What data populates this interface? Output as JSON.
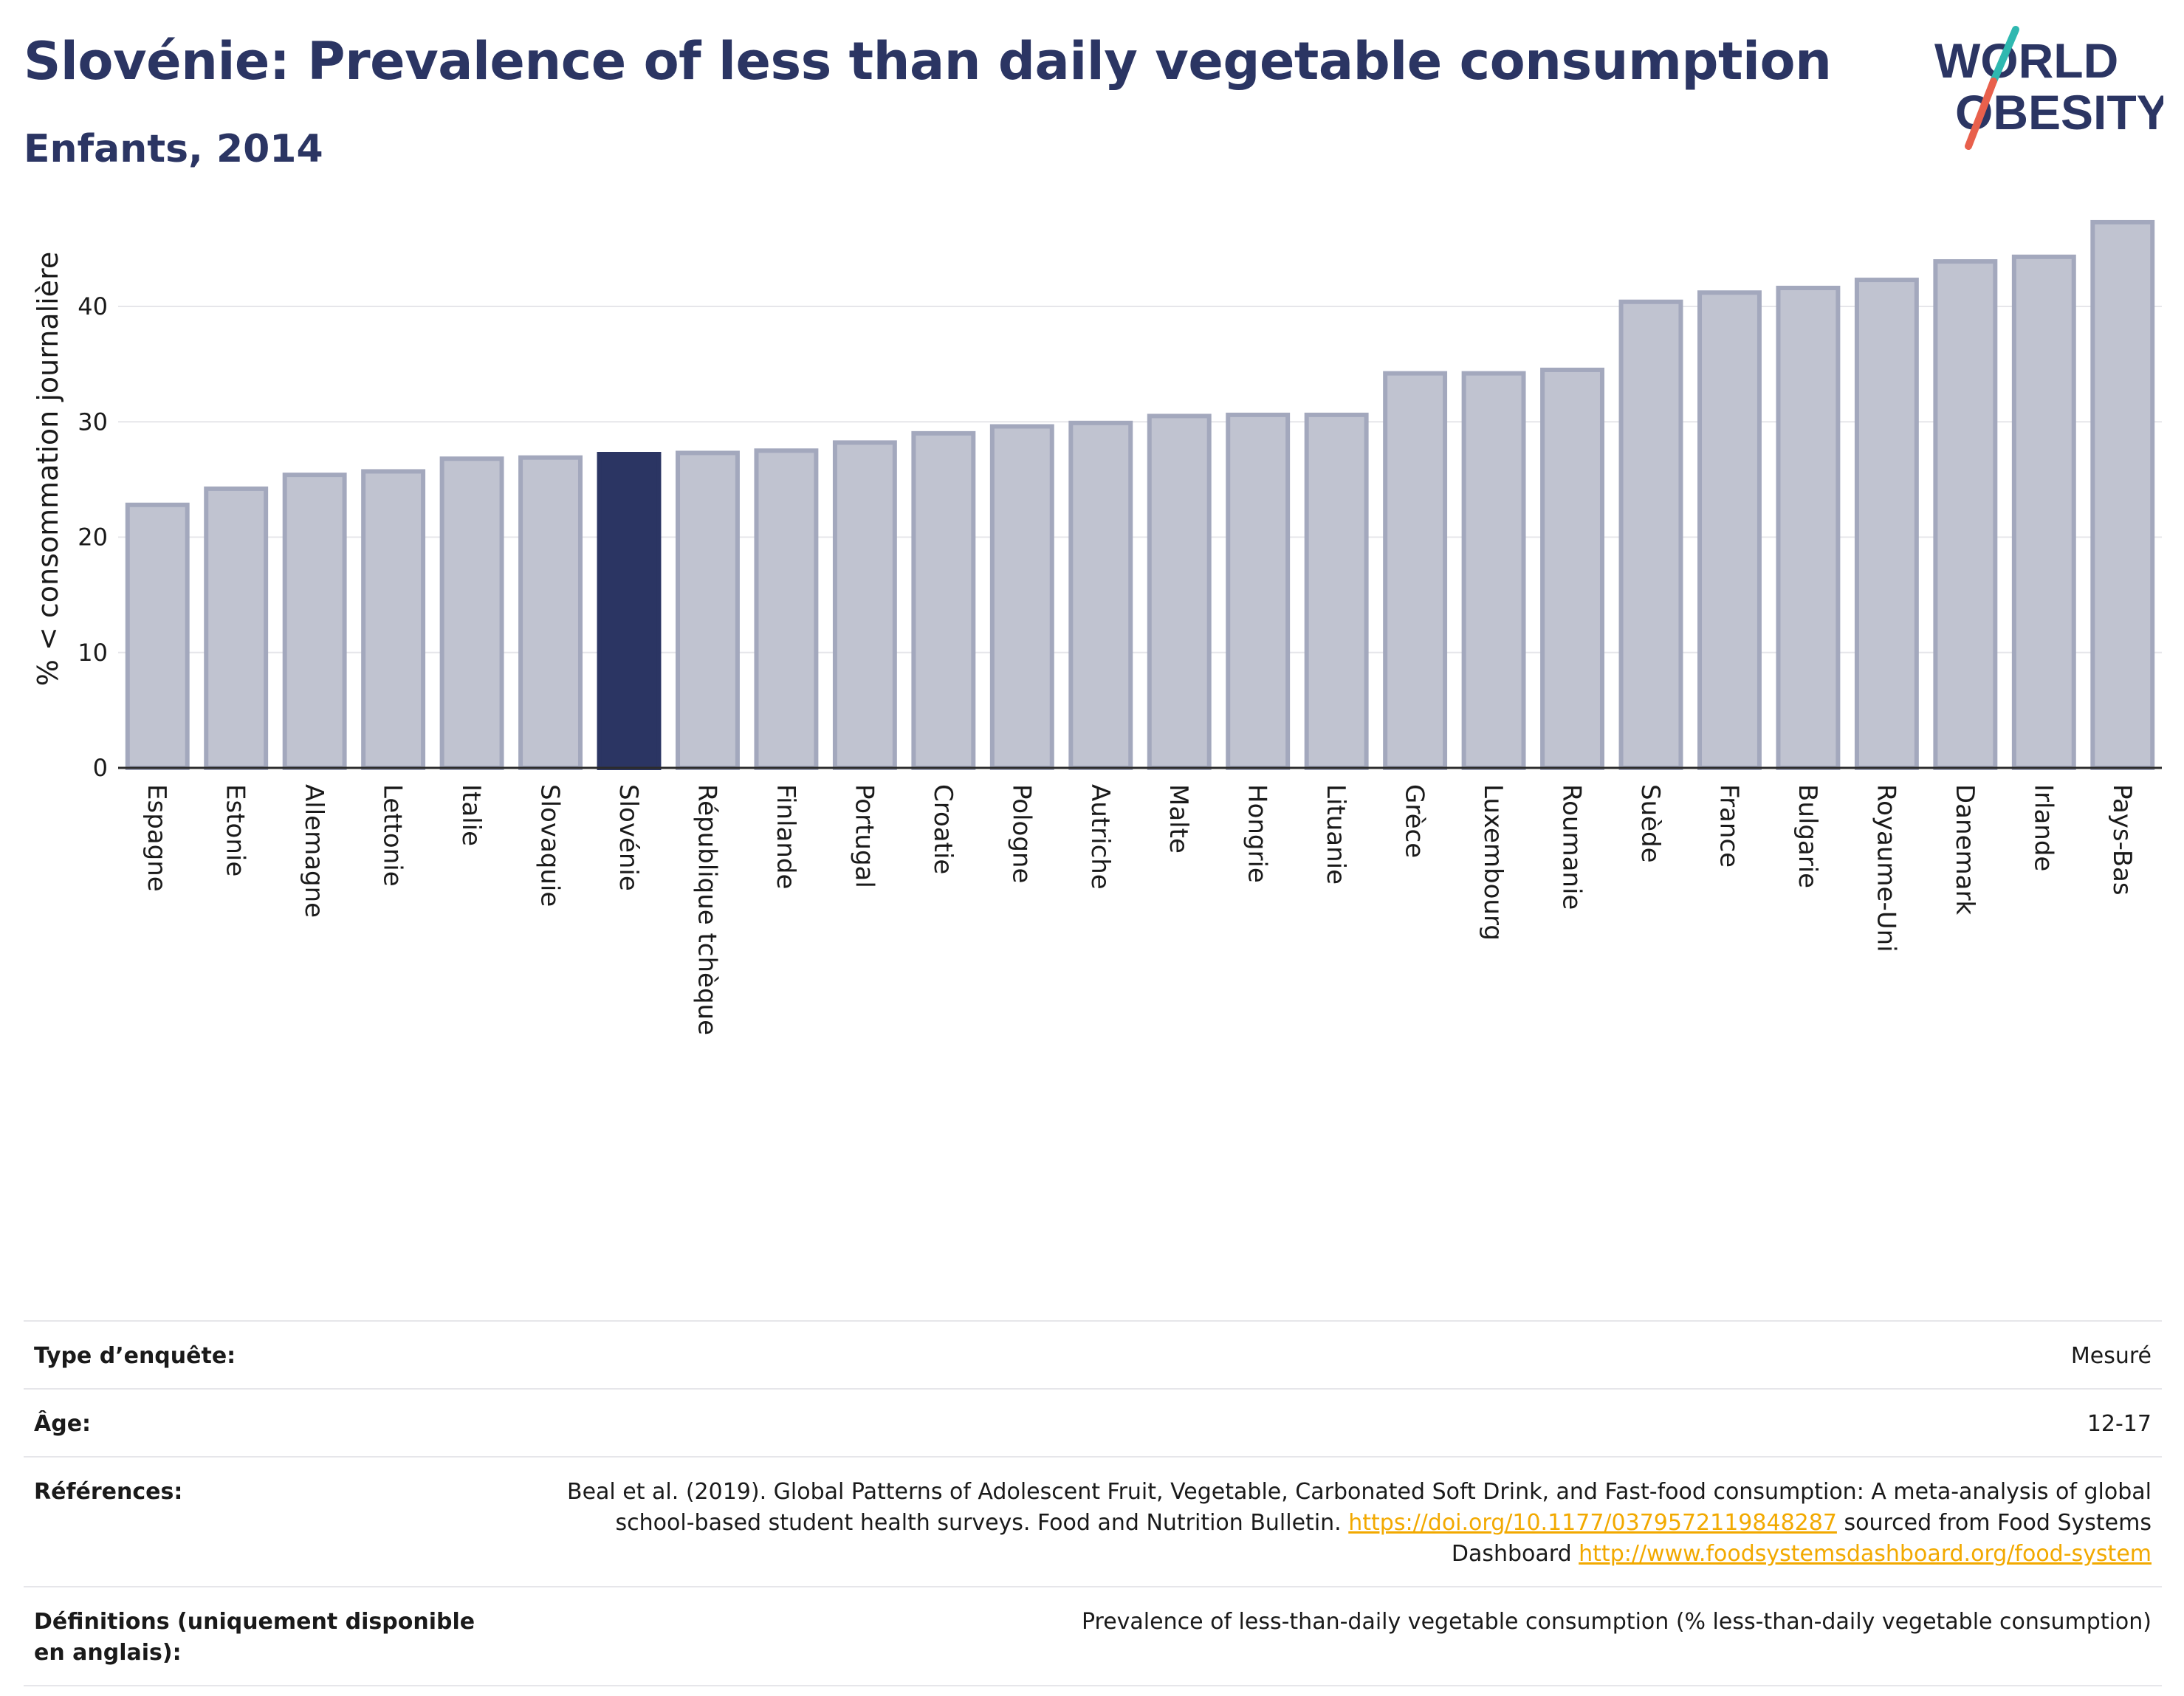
{
  "header": {
    "title": "Slovénie: Prevalence of less than daily vegetable consumption",
    "subtitle": "Enfants, 2014"
  },
  "logo": {
    "line1": "WORLD",
    "line2": "OBESITY"
  },
  "colors": {
    "highlight": "#2b3563",
    "bar": "#c0c3d0",
    "bar_border": "#a3a8bd",
    "grid": "#e6e6ea",
    "link": "#f2a900"
  },
  "chart_data": {
    "type": "bar",
    "ylabel": "% < consommation journalière",
    "xlabel": "",
    "ylim": [
      0,
      48
    ],
    "yticks": [
      0,
      10,
      20,
      30,
      40
    ],
    "highlight": "Slovénie",
    "categories": [
      "Espagne",
      "Estonie",
      "Allemagne",
      "Lettonie",
      "Italie",
      "Slovaquie",
      "Slovénie",
      "République tchèque",
      "Finlande",
      "Portugal",
      "Croatie",
      "Pologne",
      "Autriche",
      "Malte",
      "Hongrie",
      "Lituanie",
      "Grèce",
      "Luxembourg",
      "Roumanie",
      "Suède",
      "France",
      "Bulgarie",
      "Royaume-Uni",
      "Danemark",
      "Irlande",
      "Pays-Bas"
    ],
    "values": [
      22.8,
      24.2,
      25.4,
      25.7,
      26.8,
      26.9,
      27.2,
      27.3,
      27.5,
      28.2,
      29.0,
      29.6,
      29.9,
      30.5,
      30.6,
      30.6,
      34.2,
      34.2,
      34.5,
      40.4,
      41.2,
      41.6,
      42.3,
      43.9,
      44.3,
      47.3
    ]
  },
  "table": {
    "rows": [
      {
        "label": "Type d’enquête:",
        "value": "Mesuré"
      },
      {
        "label": "Âge:",
        "value": "12-17"
      },
      {
        "label": "Références:",
        "value_parts": {
          "text1": "Beal et al. (2019). Global Patterns of Adolescent Fruit, Vegetable, Carbonated Soft Drink, and Fast-food consumption: A meta-analysis of global school-based student health surveys. Food and Nutrition Bulletin. ",
          "link1": "https://doi.org/10.1177/0379572119848287",
          "text2": " sourced from Food Systems Dashboard ",
          "link2": "http://www.foodsystemsdashboard.org/food-system"
        }
      },
      {
        "label": "Définitions (uniquement disponible en anglais):",
        "value": "Prevalence of less-than-daily vegetable consumption (% less-than-daily vegetable consumption)"
      }
    ]
  }
}
